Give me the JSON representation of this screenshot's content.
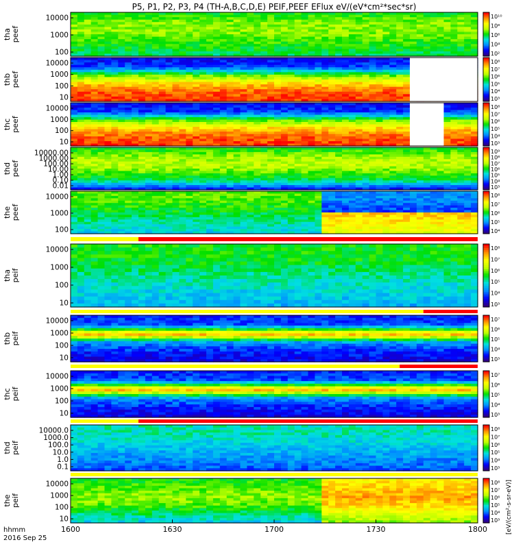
{
  "page_title": "P5, P1, P2, P3, P4 (TH-A,B,C,D,E) PEIF,PEEF EFlux eV/(eV*cm²*sec*sr)",
  "time_axis": {
    "corner_label_1": "hhmm",
    "corner_label_2": "2016 Sep 25",
    "ticks": [
      "1600",
      "1630",
      "1700",
      "1730",
      "1800"
    ]
  },
  "colorbar_unit_label": "[eV/(cm²-s-sr-eV)]",
  "colors": {
    "flag_bar_red": "#ff0000",
    "flag_bar_yellow": "#ffff00",
    "colormap": [
      "#30007f",
      "#0000ff",
      "#0090ff",
      "#00e0e0",
      "#00e000",
      "#c0ff00",
      "#ffff00",
      "#ff9000",
      "#ff0000"
    ]
  },
  "chart_data": [
    {
      "type": "heatmap",
      "panel": "tha peef",
      "ylabel_1": "tha",
      "ylabel_2": "peef",
      "x_range": [
        "1600",
        "1800"
      ],
      "y_scale": "log",
      "y_ticks": [
        "10000",
        "1000",
        "100"
      ],
      "colorbar_ticks": [
        "10¹⁰",
        "10⁸",
        "10⁶",
        "10⁴",
        "10²"
      ],
      "level_profile": [
        0.5,
        0.58,
        0.6,
        0.55,
        0.5,
        0.45
      ],
      "gap": null
    },
    {
      "type": "heatmap",
      "panel": "thb peef",
      "ylabel_1": "thb",
      "ylabel_2": "peef",
      "x_range": [
        "1600",
        "1800"
      ],
      "y_scale": "log",
      "y_ticks": [
        "10000",
        "1000",
        "100",
        "10"
      ],
      "colorbar_ticks": [
        "10⁸",
        "10⁷",
        "10⁶",
        "10⁵",
        "10⁴",
        "10³"
      ],
      "level_profile": [
        0.12,
        0.18,
        0.55,
        0.8,
        0.92,
        0.95
      ],
      "gap": [
        "1740",
        "1800"
      ]
    },
    {
      "type": "heatmap",
      "panel": "thc peef",
      "ylabel_1": "thc",
      "ylabel_2": "peef",
      "x_range": [
        "1600",
        "1800"
      ],
      "y_scale": "log",
      "y_ticks": [
        "10000",
        "1000",
        "100",
        "10"
      ],
      "colorbar_ticks": [
        "10⁸",
        "10⁷",
        "10⁶",
        "10⁵",
        "10⁴",
        "10³"
      ],
      "level_profile": [
        0.12,
        0.18,
        0.55,
        0.8,
        0.92,
        0.95
      ],
      "gap": [
        "1740",
        "1750"
      ]
    },
    {
      "type": "heatmap",
      "panel": "thd peef",
      "ylabel_1": "thd",
      "ylabel_2": "peef",
      "x_range": [
        "1600",
        "1800"
      ],
      "y_scale": "log",
      "y_ticks": [
        "10000.00",
        "1000.00",
        "100.00",
        "10.00",
        "1.00",
        "0.10",
        "0.01"
      ],
      "colorbar_ticks": [
        "10⁹",
        "10⁸",
        "10⁷",
        "10⁶",
        "10⁵",
        "10⁴",
        "10³"
      ],
      "level_profile": [
        0.5,
        0.6,
        0.65,
        0.55,
        0.45,
        0.15
      ],
      "gap": null
    },
    {
      "type": "heatmap",
      "panel": "the peef",
      "ylabel_1": "the",
      "ylabel_2": "peef",
      "x_range": [
        "1600",
        "1800"
      ],
      "y_scale": "log",
      "y_ticks": [
        "10000",
        "1000",
        "100"
      ],
      "colorbar_ticks": [
        "10⁸",
        "10⁷",
        "10⁶",
        "10⁵",
        "10⁴"
      ],
      "level_profile": [
        0.55,
        0.55,
        0.5,
        0.45,
        0.4,
        0.35
      ],
      "gap": null
    },
    {
      "type": "heatmap",
      "panel": "tha peif",
      "ylabel_1": "tha",
      "ylabel_2": "peif",
      "x_range": [
        "1600",
        "1800"
      ],
      "y_scale": "log",
      "y_ticks": [
        "10000",
        "1000",
        "100",
        "10"
      ],
      "colorbar_ticks": [
        "10⁸",
        "10⁷",
        "10⁶",
        "10⁵",
        "10⁴",
        "10³"
      ],
      "level_profile": [
        0.5,
        0.5,
        0.45,
        0.4,
        0.35,
        0.3
      ],
      "gap": null
    },
    {
      "type": "heatmap",
      "panel": "thb peif",
      "ylabel_1": "thb",
      "ylabel_2": "peif",
      "x_range": [
        "1600",
        "1800"
      ],
      "y_scale": "log",
      "y_ticks": [
        "10000",
        "1000",
        "100",
        "10"
      ],
      "colorbar_ticks": [
        "10⁷",
        "10⁶",
        "10⁵",
        "10⁴",
        "10³"
      ],
      "level_profile": [
        0.15,
        0.2,
        0.85,
        0.25,
        0.15,
        0.1
      ],
      "gap": null
    },
    {
      "type": "heatmap",
      "panel": "thc peif",
      "ylabel_1": "thc",
      "ylabel_2": "peif",
      "x_range": [
        "1600",
        "1800"
      ],
      "y_scale": "log",
      "y_ticks": [
        "10000",
        "1000",
        "100",
        "10"
      ],
      "colorbar_ticks": [
        "10⁷",
        "10⁶",
        "10⁵",
        "10⁴",
        "10³"
      ],
      "level_profile": [
        0.15,
        0.2,
        0.85,
        0.25,
        0.15,
        0.1
      ],
      "gap": null
    },
    {
      "type": "heatmap",
      "panel": "thd peif",
      "ylabel_1": "thd",
      "ylabel_2": "peif",
      "x_range": [
        "1600",
        "1800"
      ],
      "y_scale": "log",
      "y_ticks": [
        "10000.0",
        "1000.0",
        "100.0",
        "10.0",
        "1.0",
        "0.1"
      ],
      "colorbar_ticks": [
        "10⁸",
        "10⁷",
        "10⁶",
        "10⁵",
        "10⁴",
        "10³"
      ],
      "level_profile": [
        0.4,
        0.4,
        0.35,
        0.3,
        0.25,
        0.2
      ],
      "gap": null
    },
    {
      "type": "heatmap",
      "panel": "the peif",
      "ylabel_1": "the",
      "ylabel_2": "peif",
      "x_range": [
        "1600",
        "1800"
      ],
      "y_scale": "log",
      "y_ticks": [
        "10000",
        "1000",
        "100",
        "10"
      ],
      "colorbar_ticks": [
        "10⁸",
        "10⁷",
        "10⁶",
        "10⁵",
        "10⁴",
        "10³"
      ],
      "level_profile": [
        0.5,
        0.55,
        0.6,
        0.55,
        0.45,
        0.35
      ],
      "gap": null
    }
  ]
}
